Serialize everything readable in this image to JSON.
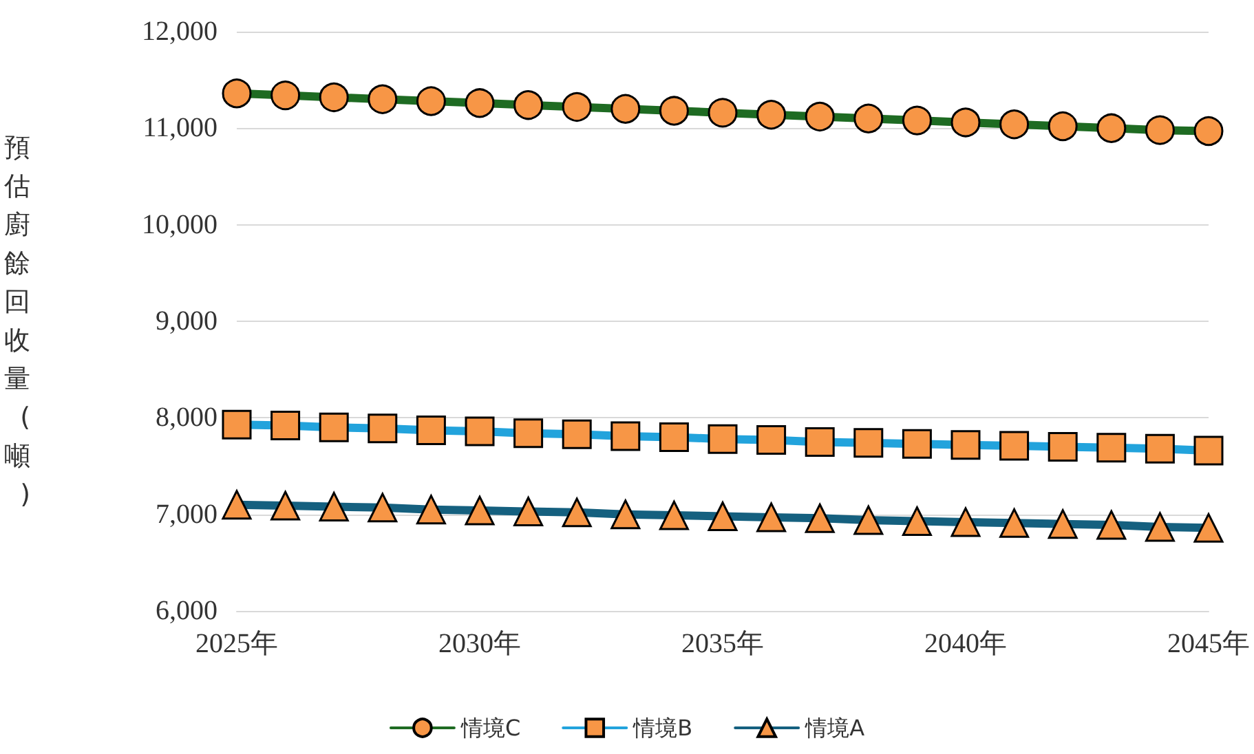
{
  "chart_data": {
    "type": "line",
    "ylabel": "預估廚餘回收量(噸)",
    "categories": [
      "2025年",
      null,
      null,
      null,
      null,
      "2030年",
      null,
      null,
      null,
      null,
      "2035年",
      null,
      null,
      null,
      null,
      "2040年",
      null,
      null,
      null,
      null,
      "2045年"
    ],
    "series": [
      {
        "name": "情境C",
        "color": "#1e6b22",
        "marker": "circle",
        "values": [
          11360,
          11340,
          11320,
          11300,
          11280,
          11260,
          11240,
          11220,
          11200,
          11180,
          11160,
          11140,
          11120,
          11100,
          11080,
          11060,
          11040,
          11020,
          11000,
          10980,
          10970
        ]
      },
      {
        "name": "情境B",
        "color": "#22a3dc",
        "marker": "square",
        "values": [
          7930,
          7920,
          7900,
          7890,
          7870,
          7860,
          7840,
          7830,
          7810,
          7800,
          7780,
          7770,
          7750,
          7740,
          7730,
          7720,
          7710,
          7700,
          7690,
          7680,
          7660
        ]
      },
      {
        "name": "情境A",
        "color": "#15607f",
        "marker": "triangle",
        "values": [
          7100,
          7090,
          7080,
          7070,
          7050,
          7040,
          7030,
          7020,
          7000,
          6990,
          6980,
          6970,
          6960,
          6940,
          6930,
          6920,
          6910,
          6900,
          6890,
          6870,
          6860
        ]
      }
    ],
    "ylim": [
      6000,
      12000
    ],
    "yticks": [
      {
        "value": 6000,
        "label": "6,000"
      },
      {
        "value": 7000,
        "label": "7,000"
      },
      {
        "value": 8000,
        "label": "8,000"
      },
      {
        "value": 9000,
        "label": "9,000"
      },
      {
        "value": 10000,
        "label": "10,000"
      },
      {
        "value": 11000,
        "label": "11,000"
      },
      {
        "value": 12000,
        "label": "12,000"
      }
    ],
    "grid": "y",
    "legend": "bottom"
  }
}
